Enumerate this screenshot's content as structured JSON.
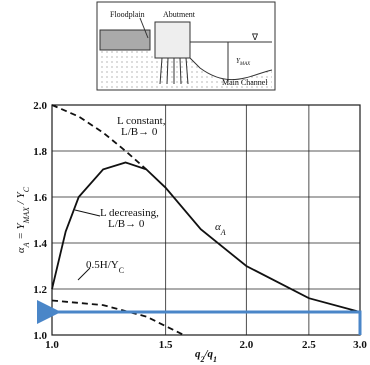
{
  "chart_data": {
    "type": "line",
    "inset": {
      "floodplain": "Floodplain",
      "abutment": "Abutment",
      "ymax": [
        {
          "text": "Y",
          "sub": false
        },
        {
          "text": "MAX",
          "sub": true
        }
      ],
      "channel": "Main Channel",
      "water_symbol": "∇"
    },
    "xlabel": [
      {
        "text": "q",
        "sub": false
      },
      {
        "text": "2",
        "sub": true
      },
      {
        "text": "/q",
        "sub": false
      },
      {
        "text": "1",
        "sub": true
      }
    ],
    "ylabel": [
      {
        "text": "α",
        "sub": false
      },
      {
        "text": "A",
        "sub": true
      },
      {
        "text": " = Y",
        "sub": false
      },
      {
        "text": "MAX",
        "sub": true
      },
      {
        "text": " / Y",
        "sub": false
      },
      {
        "text": "C",
        "sub": true
      }
    ],
    "xlim": [
      1.0,
      3.0
    ],
    "log_x": true,
    "xticks": [
      {
        "value": 1.0,
        "label": "1.0"
      },
      {
        "value": 1.5,
        "label": "1.5"
      },
      {
        "value": 2.0,
        "label": "2.0"
      },
      {
        "value": 2.5,
        "label": "2.5"
      },
      {
        "value": 3.0,
        "label": "3.0"
      }
    ],
    "ylim": [
      1.0,
      2.0
    ],
    "yticks": [
      {
        "value": 1.0,
        "label": "1.0"
      },
      {
        "value": 1.2,
        "label": "1.2"
      },
      {
        "value": 1.4,
        "label": "1.4"
      },
      {
        "value": 1.6,
        "label": "1.6"
      },
      {
        "value": 1.8,
        "label": "1.8"
      },
      {
        "value": 2.0,
        "label": "2.0"
      }
    ],
    "grid": true,
    "series": [
      {
        "name": [
          {
            "text": "α",
            "sub": false
          },
          {
            "text": "A",
            "sub": true
          }
        ],
        "color": "#111111",
        "dash": false,
        "x": [
          1.0,
          1.05,
          1.1,
          1.2,
          1.3,
          1.4,
          1.5,
          1.7,
          2.0,
          2.5,
          3.0
        ],
        "values": [
          1.2,
          1.45,
          1.6,
          1.72,
          1.75,
          1.72,
          1.64,
          1.46,
          1.3,
          1.16,
          1.1
        ]
      },
      {
        "name": [
          {
            "text": "L constant,",
            "sub": false
          },
          {
            "text": "L/B→ 0",
            "sub": false
          }
        ],
        "color": "#111111",
        "dash": true,
        "x": [
          1.0,
          1.1,
          1.2,
          1.3,
          1.4
        ],
        "values": [
          2.0,
          1.95,
          1.88,
          1.8,
          1.72
        ]
      },
      {
        "name": [
          {
            "text": "0.5H/Y",
            "sub": false
          },
          {
            "text": "C",
            "sub": true
          }
        ],
        "color": "#111111",
        "dash": true,
        "x": [
          1.0,
          1.2,
          1.4,
          1.6
        ],
        "values": [
          1.15,
          1.13,
          1.08,
          1.0
        ]
      }
    ],
    "curve_note": [
      {
        "text": "L decreasing,",
        "sub": false
      },
      {
        "text": "L/B→ 0",
        "sub": false
      }
    ],
    "annotation_arrow": {
      "color": "#4a86c8",
      "y": 1.1,
      "x_from": 3.0,
      "x_to": 1.0
    }
  }
}
